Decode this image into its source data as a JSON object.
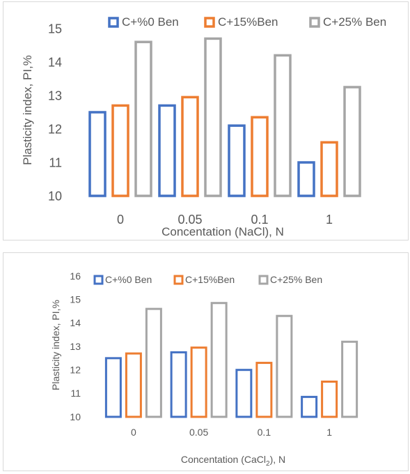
{
  "chart_data": [
    {
      "type": "bar",
      "title": "",
      "xlabel": "Concentation (NaCl), N",
      "ylabel": "Plasticity index, PI,%",
      "categories": [
        "0",
        "0.05",
        "0.1",
        "1"
      ],
      "ylim": [
        10,
        15
      ],
      "yticks": [
        "10",
        "11",
        "12",
        "13",
        "14",
        "15"
      ],
      "grid": false,
      "legend_position": "top",
      "series": [
        {
          "name": "C+%0 Ben",
          "color": "#4472C4",
          "values": [
            12.5,
            12.7,
            12.1,
            11.0
          ]
        },
        {
          "name": "C+15%Ben",
          "color": "#ED7D31",
          "values": [
            12.7,
            12.95,
            12.35,
            11.6
          ]
        },
        {
          "name": "C+25% Ben",
          "color": "#A5A5A5",
          "values": [
            14.6,
            14.7,
            14.2,
            13.25
          ]
        }
      ]
    },
    {
      "type": "bar",
      "title": "",
      "xlabel": "Concentation (CaCl",
      "xlabel_subscript": "2",
      "xlabel_suffix": "), N",
      "ylabel": "Plasticity index,  PI,%",
      "categories": [
        "0",
        "0.05",
        "0.1",
        "1"
      ],
      "ylim": [
        10,
        16
      ],
      "yticks": [
        "10",
        "11",
        "12",
        "13",
        "14",
        "15",
        "16"
      ],
      "grid": false,
      "legend_position": "top",
      "series": [
        {
          "name": "C+%0 Ben",
          "color": "#4472C4",
          "values": [
            12.5,
            12.75,
            12.0,
            10.85
          ]
        },
        {
          "name": "C+15%Ben",
          "color": "#ED7D31",
          "values": [
            12.7,
            12.95,
            12.3,
            11.5
          ]
        },
        {
          "name": "C+25% Ben",
          "color": "#A5A5A5",
          "values": [
            14.6,
            14.85,
            14.3,
            13.2
          ]
        }
      ]
    }
  ]
}
